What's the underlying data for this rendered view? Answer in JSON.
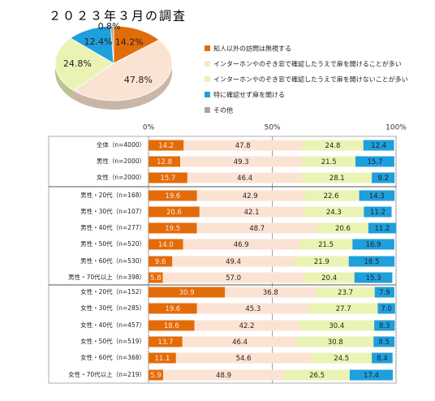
{
  "chart_data": [
    {
      "type": "pie",
      "title": "２０２３年３月の調査",
      "categories": [
        "知人以外の訪問は無視する",
        "インターホンやのぞき窓で確認したうえで扉を開けることが多い",
        "インターホンやのぞき窓で確認したうえで扉を開けないことが多い",
        "特に確認せず扉を開ける",
        "その他"
      ],
      "values": [
        14.2,
        47.8,
        24.8,
        12.4,
        0.8
      ],
      "value_labels": [
        "14.2%",
        "47.8%",
        "24.8%",
        "12.4%",
        "0.8%"
      ],
      "colors": [
        "#e36c0a",
        "#fbe3d3",
        "#ebf3b4",
        "#1f9fdc",
        "#a6a6a6"
      ]
    },
    {
      "type": "stacked-barh",
      "categories": [
        "全体（n=4000）",
        "男性（n=2000）",
        "女性（n=2000）",
        "男性・20代（n=168）",
        "男性・30代（n=107）",
        "男性・40代（n=277）",
        "男性・50代（n=520）",
        "男性・60代（n=530）",
        "男性・70代以上（n=398）",
        "女性・20代（n=152）",
        "女性・30代（n=285）",
        "女性・40代（n=457）",
        "女性・50代（n=519）",
        "女性・60代（n=368）",
        "女性・70代以上（n=219）"
      ],
      "series": [
        {
          "color": "#e36c0a",
          "values": [
            14.2,
            12.8,
            15.7,
            19.6,
            20.6,
            19.5,
            14.0,
            9.6,
            5.8,
            30.9,
            19.6,
            18.6,
            13.7,
            11.1,
            5.9
          ],
          "value_labels": [
            "14.2",
            "12.8",
            "15.7",
            "19.6",
            "20.6",
            "19.5",
            "14.0",
            "9.6",
            "5.8",
            "30.9",
            "19.6",
            "18.6",
            "13.7",
            "11.1",
            "5.9"
          ]
        },
        {
          "color": "#fbe3d3",
          "values": [
            47.8,
            49.3,
            46.4,
            42.9,
            42.1,
            48.7,
            46.9,
            49.4,
            57.0,
            36.8,
            45.3,
            42.2,
            46.4,
            54.6,
            48.9
          ],
          "value_labels": [
            "47.8",
            "49.3",
            "46.4",
            "42.9",
            "42.1",
            "48.7",
            "46.9",
            "49.4",
            "57.0",
            "36.8",
            "45.3",
            "42.2",
            "46.4",
            "54.6",
            "48.9"
          ]
        },
        {
          "color": "#ebf3b4",
          "values": [
            24.8,
            21.5,
            28.1,
            22.6,
            24.3,
            20.6,
            21.5,
            21.9,
            20.4,
            23.7,
            27.7,
            30.4,
            30.8,
            24.5,
            26.5
          ],
          "value_labels": [
            "24.8",
            "21.5",
            "28.1",
            "22.6",
            "24.3",
            "20.6",
            "21.5",
            "21.9",
            "20.4",
            "23.7",
            "27.7",
            "30.4",
            "30.8",
            "24.5",
            "26.5"
          ]
        },
        {
          "color": "#1f9fdc",
          "values": [
            12.4,
            15.7,
            9.2,
            14.3,
            11.2,
            11.2,
            16.9,
            18.5,
            15.3,
            7.9,
            7.0,
            8.3,
            8.5,
            8.4,
            17.4
          ],
          "value_labels": [
            "12.4",
            "15.7",
            "9.2",
            "14.3",
            "11.2",
            "11.2",
            "16.9",
            "18.5",
            "15.3",
            "7.9",
            "7.0",
            "8.3",
            "8.5",
            "8.4",
            "17.4"
          ]
        }
      ],
      "xlim": [
        0,
        100
      ],
      "xticks": [
        {
          "value": 0,
          "label": "0%"
        },
        {
          "value": 50,
          "label": "50%"
        },
        {
          "value": 100,
          "label": "100%"
        }
      ],
      "grid": true
    }
  ]
}
